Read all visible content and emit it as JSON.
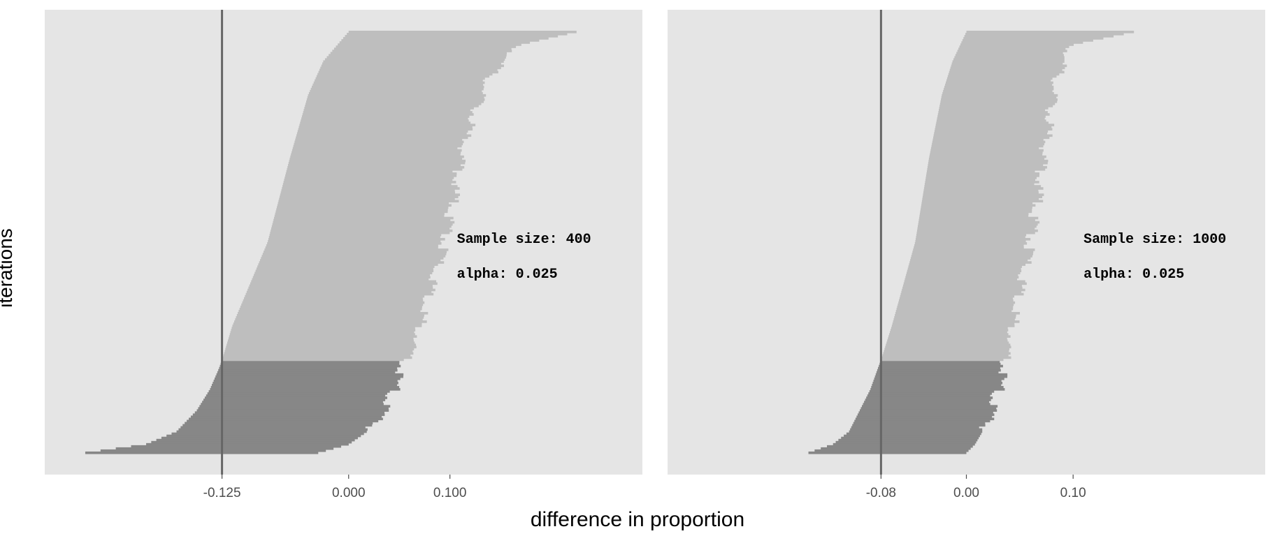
{
  "xlabel": "difference in proportion",
  "ylabel": "iterations",
  "colors": {
    "panel_bg": "#e5e5e5",
    "bar_above": "#bebebe",
    "bar_below": "#878787",
    "vline": "#666666"
  },
  "chart_data": [
    {
      "type": "bar",
      "orientation": "horizontal",
      "description_of_marks": "sorted simulated confidence intervals, one bar per iteration",
      "xlim": [
        -0.3,
        0.29
      ],
      "ticks": [
        -0.125,
        0.0,
        0.1
      ],
      "tick_labels": [
        "-0.125",
        "0.000",
        "0.100"
      ],
      "vline_x": -0.125,
      "threshold_fraction": 0.22,
      "intervals": {
        "lower_anchor": [
          [
            0.0,
            -0.26
          ],
          [
            0.02,
            -0.2
          ],
          [
            0.05,
            -0.17
          ],
          [
            0.1,
            -0.15
          ],
          [
            0.15,
            -0.137
          ],
          [
            0.2,
            -0.128
          ],
          [
            0.22,
            -0.125
          ],
          [
            0.3,
            -0.115
          ],
          [
            0.5,
            -0.08
          ],
          [
            0.7,
            -0.058
          ],
          [
            0.85,
            -0.04
          ],
          [
            0.93,
            -0.025
          ],
          [
            1.0,
            0.0
          ]
        ],
        "upper_anchor": [
          [
            0.0,
            -0.03
          ],
          [
            0.02,
            0.0
          ],
          [
            0.05,
            0.018
          ],
          [
            0.1,
            0.035
          ],
          [
            0.15,
            0.045
          ],
          [
            0.2,
            0.05
          ],
          [
            0.25,
            0.065
          ],
          [
            0.5,
            0.095
          ],
          [
            0.75,
            0.115
          ],
          [
            0.9,
            0.14
          ],
          [
            0.97,
            0.17
          ],
          [
            1.0,
            0.225
          ]
        ],
        "count": 200
      },
      "annotations": [
        "Sample size: 400",
        "alpha: 0.025"
      ]
    },
    {
      "type": "bar",
      "orientation": "horizontal",
      "description_of_marks": "sorted simulated confidence intervals, one bar per iteration",
      "xlim": [
        -0.28,
        0.28
      ],
      "ticks": [
        -0.08,
        0.0,
        0.1
      ],
      "tick_labels": [
        "-0.08",
        "0.00",
        "0.10"
      ],
      "vline_x": -0.08,
      "threshold_fraction": 0.22,
      "intervals": {
        "lower_anchor": [
          [
            0.0,
            -0.148
          ],
          [
            0.02,
            -0.125
          ],
          [
            0.05,
            -0.11
          ],
          [
            0.1,
            -0.1
          ],
          [
            0.15,
            -0.09
          ],
          [
            0.2,
            -0.083
          ],
          [
            0.22,
            -0.08
          ],
          [
            0.3,
            -0.07
          ],
          [
            0.5,
            -0.048
          ],
          [
            0.7,
            -0.035
          ],
          [
            0.85,
            -0.023
          ],
          [
            0.93,
            -0.013
          ],
          [
            1.0,
            0.0
          ]
        ],
        "upper_anchor": [
          [
            0.0,
            0.0
          ],
          [
            0.02,
            0.008
          ],
          [
            0.05,
            0.015
          ],
          [
            0.1,
            0.024
          ],
          [
            0.15,
            0.03
          ],
          [
            0.2,
            0.034
          ],
          [
            0.25,
            0.04
          ],
          [
            0.5,
            0.06
          ],
          [
            0.75,
            0.075
          ],
          [
            0.9,
            0.085
          ],
          [
            0.97,
            0.1
          ],
          [
            1.0,
            0.157
          ]
        ],
        "count": 200
      },
      "annotations": [
        "Sample size: 1000",
        "alpha: 0.025"
      ]
    }
  ]
}
